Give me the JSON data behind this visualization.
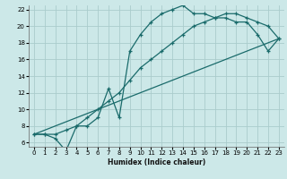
{
  "xlabel": "Humidex (Indice chaleur)",
  "bg_color": "#cce8e8",
  "grid_color": "#aacccc",
  "line_color": "#1a6b6b",
  "xlim": [
    -0.5,
    23.5
  ],
  "ylim": [
    5.5,
    22.5
  ],
  "xticks": [
    0,
    1,
    2,
    3,
    4,
    5,
    6,
    7,
    8,
    9,
    10,
    11,
    12,
    13,
    14,
    15,
    16,
    17,
    18,
    19,
    20,
    21,
    22,
    23
  ],
  "yticks": [
    6,
    8,
    10,
    12,
    14,
    16,
    18,
    20,
    22
  ],
  "line_smooth": {
    "x": [
      0,
      1,
      2,
      3,
      4,
      5,
      6,
      7,
      8,
      9,
      10,
      11,
      12,
      13,
      14,
      15,
      16,
      17,
      18,
      19,
      20,
      21,
      22,
      23
    ],
    "y": [
      7,
      7,
      7,
      7.5,
      8,
      9,
      10,
      11,
      12,
      13.5,
      15,
      16,
      17,
      18,
      19,
      20,
      20.5,
      21,
      21.5,
      21.5,
      21,
      20.5,
      20,
      18.5
    ]
  },
  "line_jagged": {
    "x": [
      0,
      1,
      2,
      3,
      4,
      5,
      6,
      7,
      8,
      9,
      10,
      11,
      12,
      13,
      14,
      15,
      16,
      17,
      18,
      19,
      20,
      21,
      22,
      23
    ],
    "y": [
      7,
      7,
      6.5,
      5,
      8,
      8,
      9,
      12.5,
      9,
      17,
      19,
      20.5,
      21.5,
      22,
      22.5,
      21.5,
      21.5,
      21,
      21,
      20.5,
      20.5,
      19,
      17,
      18.5
    ]
  },
  "line_diag": {
    "x": [
      0,
      23
    ],
    "y": [
      7,
      18.5
    ]
  }
}
